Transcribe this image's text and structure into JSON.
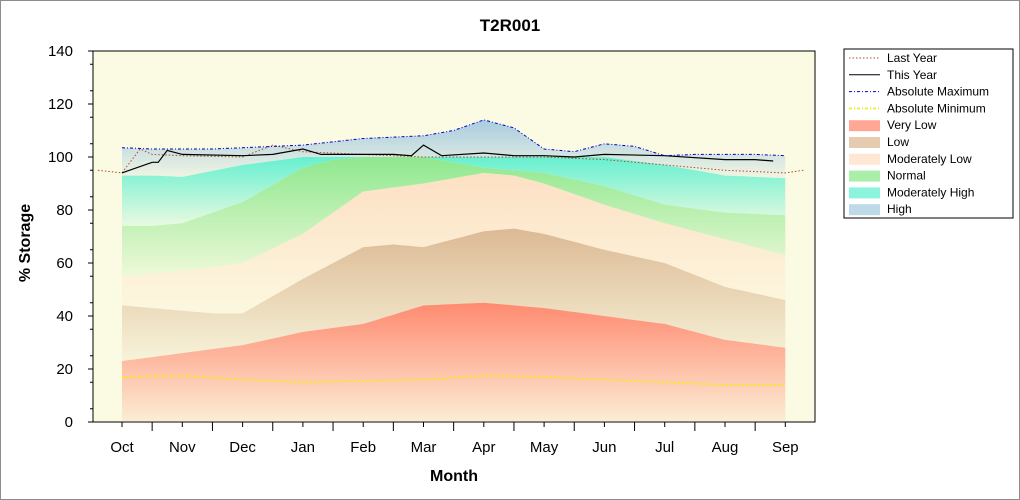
{
  "chart_data": {
    "type": "area",
    "title": "T2R001",
    "xlabel": "Month",
    "ylabel": "% Storage",
    "ylim": [
      0,
      140
    ],
    "yticks": [
      "0",
      "20",
      "40",
      "60",
      "80",
      "100",
      "120",
      "140"
    ],
    "categories": [
      "Oct",
      "Nov",
      "Dec",
      "Jan",
      "Feb",
      "Mar",
      "Apr",
      "May",
      "Jun",
      "Jul",
      "Aug",
      "Sep"
    ],
    "grid": false,
    "legend_position": "right",
    "colors": {
      "plot_background": "#fbfbe3",
      "very_low": "#ff8a70",
      "low": "#dcb994",
      "moderately_low": "#fde0c4",
      "normal": "#8ee88e",
      "moderately_high": "#66f0d0",
      "high": "#a8cce0",
      "last_year": "#b04a2a",
      "this_year": "#000000",
      "absolute_maximum": "#0000c8",
      "absolute_minimum": "#f0f000"
    },
    "bands": [
      {
        "name": "Very Low",
        "key": "very_low",
        "x": [
          0,
          0.5,
          1,
          2,
          3,
          4,
          5,
          6,
          7,
          8,
          9,
          10,
          11
        ],
        "values": [
          23,
          24.5,
          26,
          29,
          34,
          37,
          44,
          45,
          43,
          40,
          37,
          31,
          28
        ]
      },
      {
        "name": "Low",
        "key": "low",
        "x": [
          0,
          0.5,
          1,
          1.5,
          2,
          3,
          4,
          4.5,
          5,
          6,
          6.5,
          7,
          7.5,
          8,
          9,
          10,
          11
        ],
        "values": [
          44,
          43,
          42,
          41,
          41,
          54,
          66,
          67,
          66,
          72,
          73,
          71,
          68,
          65,
          60,
          51,
          46
        ]
      },
      {
        "name": "Moderately Low",
        "key": "moderately_low",
        "x": [
          0,
          0.5,
          1,
          2,
          3,
          4,
          5,
          6,
          6.5,
          7,
          8,
          9,
          10,
          11
        ],
        "values": [
          55,
          56,
          57,
          60,
          71,
          87,
          90,
          94,
          93,
          90,
          82,
          75,
          69,
          63
        ]
      },
      {
        "name": "Normal",
        "key": "normal",
        "x": [
          0,
          0.5,
          1,
          2,
          3,
          3.5,
          4,
          5,
          6,
          6.5,
          7,
          8,
          9,
          10,
          11
        ],
        "values": [
          74,
          74,
          75,
          83,
          96,
          99,
          100,
          100,
          96,
          95,
          94,
          89,
          82,
          79,
          78
        ]
      },
      {
        "name": "Moderately High",
        "key": "moderately_high",
        "x": [
          0,
          0.5,
          1,
          2,
          3,
          4,
          5,
          6,
          7,
          8,
          9,
          10,
          11
        ],
        "values": [
          93,
          93,
          92.5,
          97,
          100,
          100,
          100,
          100,
          100,
          100,
          97,
          93,
          92
        ]
      },
      {
        "name": "High",
        "key": "high",
        "x": [
          0,
          0.5,
          1,
          1.5,
          2,
          2.5,
          3,
          4,
          4.5,
          5,
          5.5,
          6,
          6.5,
          7,
          7.5,
          8,
          8.5,
          9,
          9.5,
          10,
          10.5,
          11
        ],
        "values": [
          103.5,
          103,
          103,
          103,
          103.5,
          104,
          104.5,
          107,
          107.5,
          108,
          110,
          114,
          111,
          103,
          102,
          105,
          104,
          100.5,
          101,
          101,
          101,
          100.5
        ]
      }
    ],
    "lines": [
      {
        "name": "Last Year",
        "key": "last_year",
        "style": "dotted",
        "x": [
          -0.4,
          0,
          0.3,
          0.5,
          1,
          2,
          2.5,
          3,
          4,
          5,
          6,
          7,
          8,
          9,
          10,
          11,
          11.3
        ],
        "values": [
          95,
          94,
          103,
          101,
          100.5,
          100,
          104.5,
          102,
          101,
          100,
          100,
          100,
          99,
          97,
          95,
          94,
          95
        ]
      },
      {
        "name": "This Year",
        "key": "this_year",
        "style": "solid",
        "x": [
          0,
          0.5,
          0.6,
          0.75,
          1,
          2,
          2.5,
          3,
          3.3,
          4,
          4.5,
          4.8,
          5,
          5.3,
          6,
          6.5,
          7,
          7.5,
          8,
          9,
          10,
          10.5,
          10.8
        ],
        "values": [
          94,
          98,
          98,
          102.5,
          101,
          100.5,
          101,
          103,
          101,
          101,
          101,
          100.5,
          104.5,
          100.5,
          101.5,
          100.5,
          100.5,
          100,
          101,
          100.5,
          99,
          99,
          98.5
        ]
      },
      {
        "name": "Absolute Maximum",
        "key": "absolute_maximum",
        "style": "dashdot",
        "x": [
          0,
          0.5,
          1,
          1.5,
          2,
          2.5,
          3,
          4,
          4.5,
          5,
          5.5,
          6,
          6.5,
          7,
          7.5,
          8,
          8.5,
          9,
          9.5,
          10,
          10.5,
          11
        ],
        "values": [
          103.5,
          103,
          103,
          103,
          103.5,
          104,
          104.5,
          107,
          107.5,
          108,
          110,
          114,
          111,
          103,
          102,
          105,
          104,
          100.5,
          101,
          101,
          101,
          100.5
        ]
      },
      {
        "name": "Absolute Minimum",
        "key": "absolute_minimum",
        "style": "dashdot",
        "x": [
          0,
          1,
          2,
          3,
          4,
          5,
          6,
          7,
          8,
          9,
          10,
          11
        ],
        "values": [
          17,
          17.5,
          16,
          15,
          15.5,
          16,
          17.5,
          17,
          16,
          15,
          14,
          14
        ]
      }
    ],
    "legend": [
      "Last Year",
      "This Year",
      "Absolute Maximum",
      "Absolute Minimum",
      "Very Low",
      "Low",
      "Moderately Low",
      "Normal",
      "Moderately High",
      "High"
    ]
  }
}
